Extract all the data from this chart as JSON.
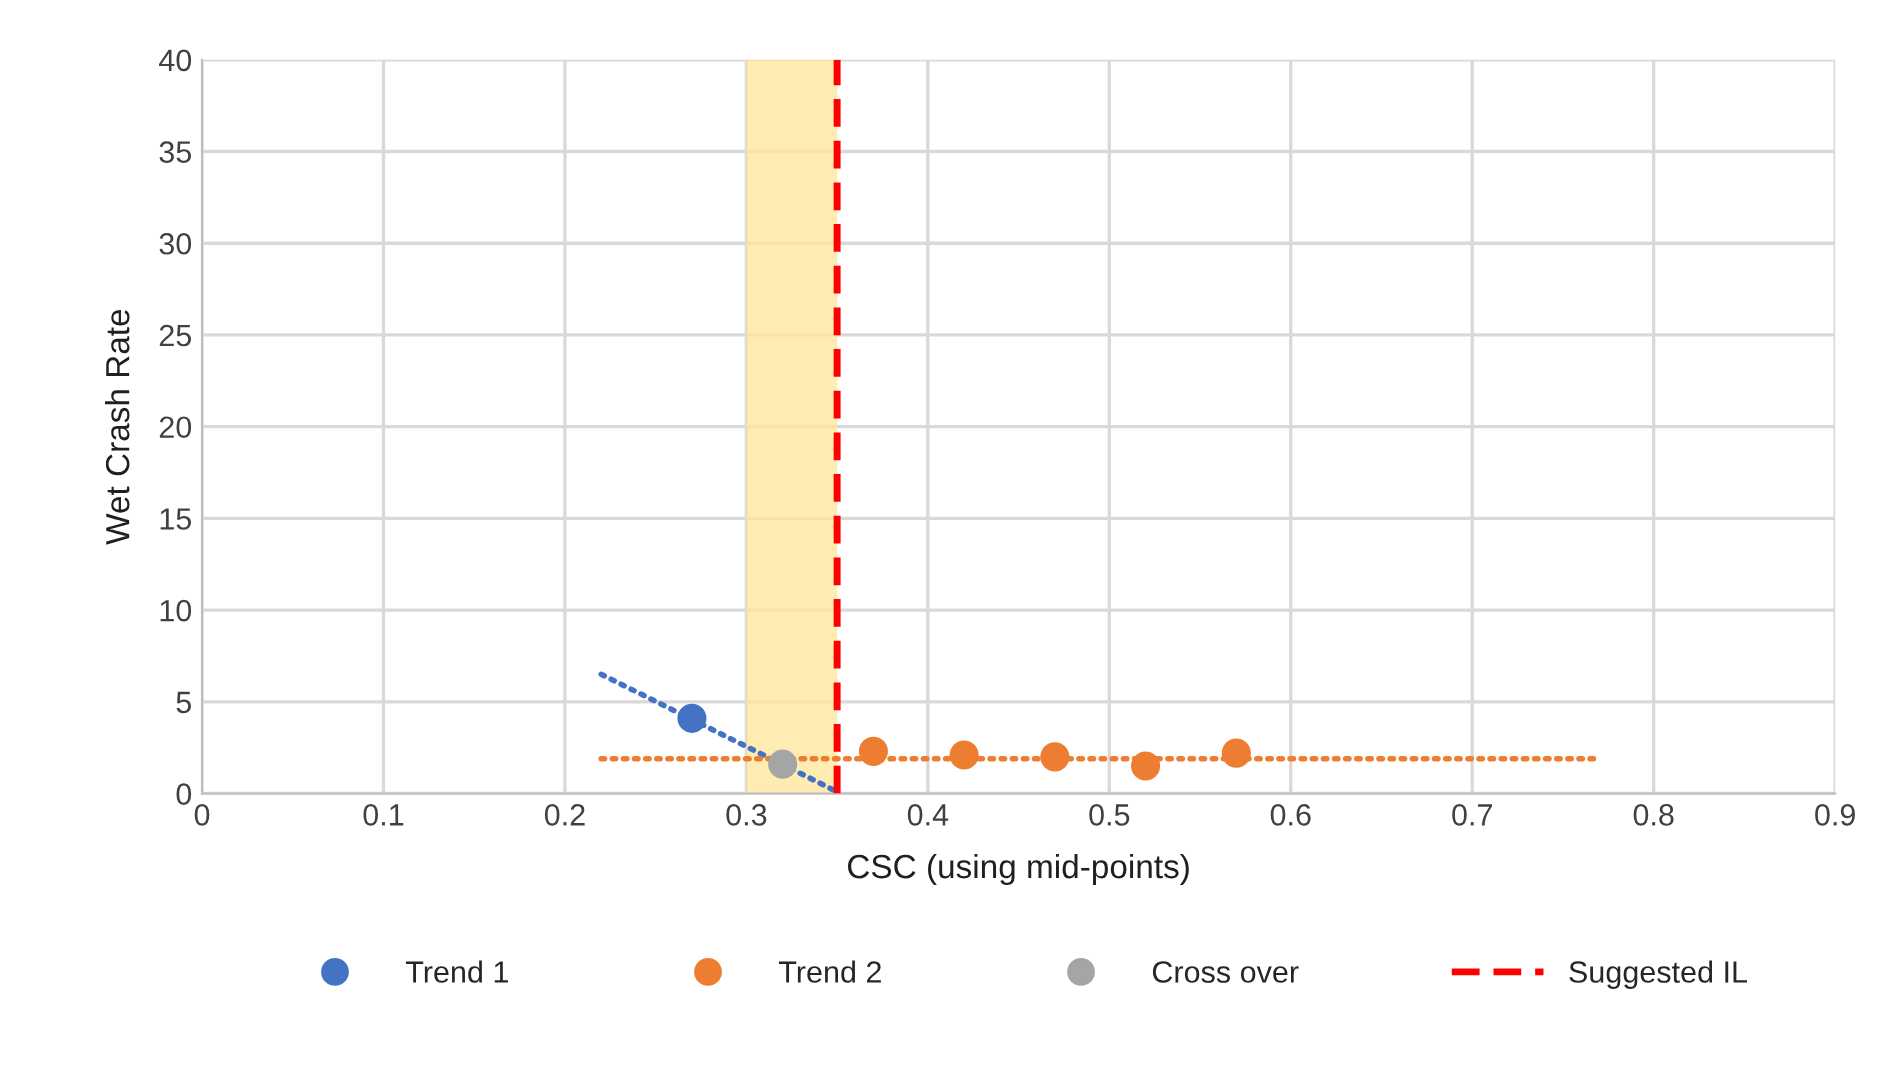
{
  "chart_data": {
    "type": "scatter",
    "xlabel": "CSC (using mid-points)",
    "ylabel": "Wet Crash Rate",
    "xlim": [
      0,
      0.9
    ],
    "xticks": [
      0,
      0.1,
      0.2,
      0.3,
      0.4,
      0.5,
      0.6,
      0.7,
      0.8,
      0.9
    ],
    "ylim": [
      0,
      40
    ],
    "yticks": [
      0,
      5,
      10,
      15,
      20,
      25,
      30,
      35,
      40
    ],
    "grid": true,
    "legend": "bottom",
    "marker": "circle",
    "series": [
      {
        "type": "line",
        "color": "#4472c4",
        "line_style": "dotted",
        "marker": "none",
        "x": [
          0.22,
          0.35
        ],
        "values": [
          6.5,
          0.1
        ]
      },
      {
        "type": "line",
        "color": "#ed7d31",
        "line_style": "dotted",
        "marker": "none",
        "x": [
          0.22,
          0.77
        ],
        "values": [
          1.9,
          1.9
        ]
      },
      {
        "name": "Trend 1",
        "color": "#4472c4",
        "x": [
          0.27
        ],
        "values": [
          4.1
        ]
      },
      {
        "name": "Trend 2",
        "color": "#ed7d31",
        "x": [
          0.37,
          0.42,
          0.47,
          0.52,
          0.57
        ],
        "values": [
          2.3,
          2.1,
          2.0,
          1.5,
          2.2
        ]
      },
      {
        "name": "Cross over",
        "color": "#a5a5a5",
        "x": [
          0.32
        ],
        "values": [
          1.6
        ]
      }
    ],
    "bands": [
      {
        "axis": "x",
        "from": 0.3,
        "to": 0.35,
        "color": "#ffe699"
      }
    ],
    "ref_lines": [
      {
        "axis": "x",
        "value": 0.35,
        "label": "Suggested IL",
        "color": "#ff0000",
        "line_style": "dashed"
      }
    ]
  }
}
